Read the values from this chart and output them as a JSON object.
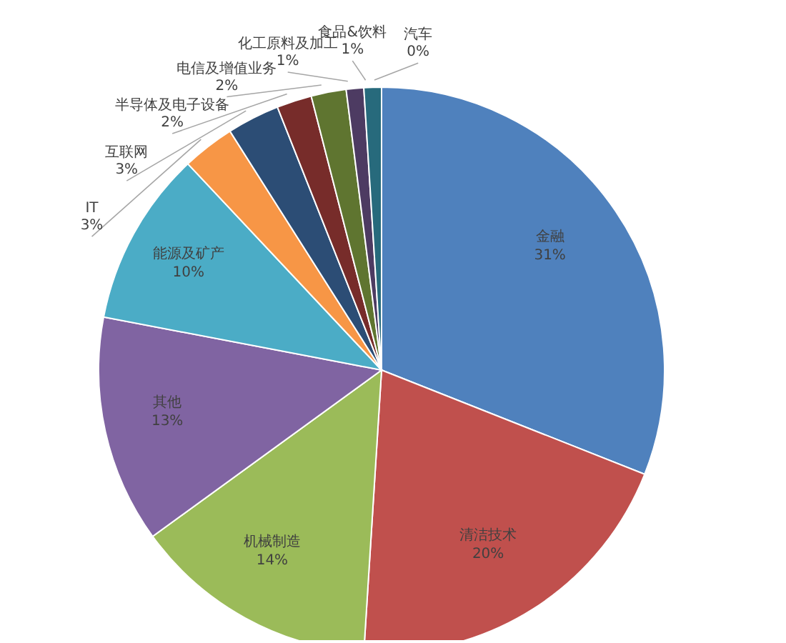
{
  "chart_data": {
    "type": "pie",
    "categories": [
      "金融",
      "清洁技术",
      "机械制造",
      "其他",
      "能源及矿产",
      "IT",
      "互联网",
      "半导体及电子设备",
      "电信及增值业务",
      "化工原料及加工",
      "食品&饮料",
      "汽车"
    ],
    "values": [
      31,
      20,
      14,
      13,
      10,
      3,
      3,
      2,
      2,
      1,
      1,
      0
    ],
    "colors": [
      "#4f81bd",
      "#c0504d",
      "#9bbb59",
      "#8064a2",
      "#4bacc6",
      "#f79646",
      "#2c4d75",
      "#772c2a",
      "#5f7530",
      "#4d3b62",
      "#276a7c",
      "#b65708"
    ],
    "value_labels": [
      "31%",
      "20%",
      "14%",
      "13%",
      "10%",
      "3%",
      "3%",
      "2%",
      "2%",
      "1%",
      "1%",
      "0%"
    ]
  }
}
